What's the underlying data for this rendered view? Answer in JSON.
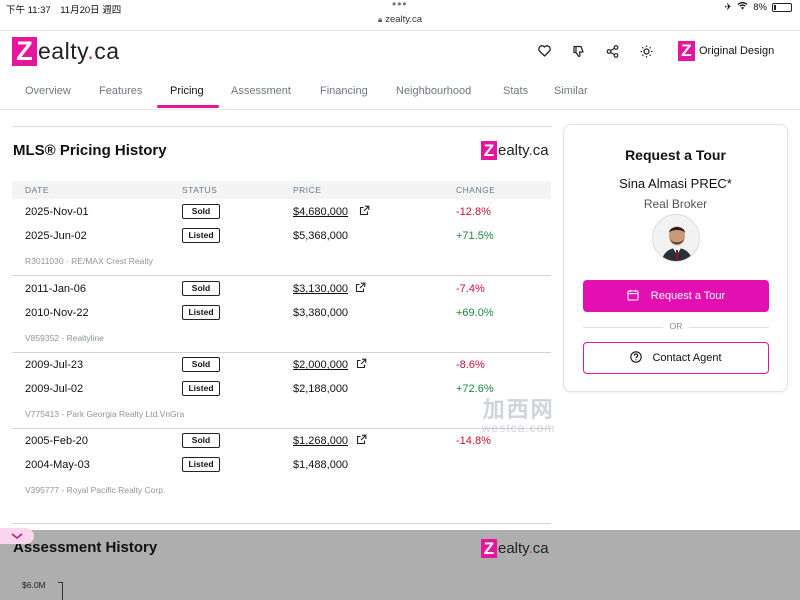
{
  "status_bar": {
    "time": "下午 11:37　11月20日 週四",
    "battery": "8%",
    "url": "zealty.ca"
  },
  "header": {
    "logo_z": "Z",
    "logo_rest": "ealty",
    "logo_dot": ".",
    "logo_tld": "ca",
    "icons": [
      "heart-icon",
      "thumbs-down-icon",
      "share-icon",
      "brightness-icon"
    ],
    "original_design_label": "Original Design"
  },
  "tabs": [
    {
      "label": "Overview"
    },
    {
      "label": "Features"
    },
    {
      "label": "Pricing",
      "active": true
    },
    {
      "label": "Assessment"
    },
    {
      "label": "Financing"
    },
    {
      "label": "Neighbourhood"
    },
    {
      "label": "Stats"
    },
    {
      "label": "Similar"
    }
  ],
  "pricing": {
    "title": "MLS® Pricing History",
    "columns": [
      "DATE",
      "STATUS",
      "PRICE",
      "CHANGE"
    ],
    "groups": [
      {
        "rows": [
          {
            "date": "2025-Nov-01",
            "status": "Sold",
            "price": "$4,680,000",
            "link": true,
            "change": "-12.8%",
            "dir": "neg"
          },
          {
            "date": "2025-Jun-02",
            "status": "Listed",
            "price": "$5,368,000",
            "link": false,
            "change": "+71.5%",
            "dir": "pos"
          }
        ],
        "mls": "R3011030 - RE/MAX Crest Realty"
      },
      {
        "rows": [
          {
            "date": "2011-Jan-06",
            "status": "Sold",
            "price": "$3,130,000",
            "link": true,
            "change": "-7.4%",
            "dir": "neg"
          },
          {
            "date": "2010-Nov-22",
            "status": "Listed",
            "price": "$3,380,000",
            "link": false,
            "change": "+69.0%",
            "dir": "pos"
          }
        ],
        "mls": "V859352 - Realtyline"
      },
      {
        "rows": [
          {
            "date": "2009-Jul-23",
            "status": "Sold",
            "price": "$2,000,000",
            "link": true,
            "change": "-8.6%",
            "dir": "neg"
          },
          {
            "date": "2009-Jul-02",
            "status": "Listed",
            "price": "$2,188,000",
            "link": false,
            "change": "+72.6%",
            "dir": "pos"
          }
        ],
        "mls": "V775413 - Park Georgia Realty Ltd.VnGra"
      },
      {
        "rows": [
          {
            "date": "2005-Feb-20",
            "status": "Sold",
            "price": "$1,268,000",
            "link": true,
            "change": "-14.8%",
            "dir": "neg"
          },
          {
            "date": "2004-May-03",
            "status": "Listed",
            "price": "$1,488,000",
            "link": false,
            "change": "",
            "dir": ""
          }
        ],
        "mls": "V395777 - Royal Pacific Realty Corp."
      }
    ]
  },
  "tour_card": {
    "title": "Request a Tour",
    "agent_name": "Sina Almasi PREC*",
    "agent_role": "Real Broker",
    "request_button": "Request a Tour",
    "or_text": "OR",
    "contact_button": "Contact Agent"
  },
  "watermark": {
    "line1": "加西网",
    "line2": "westca.com"
  },
  "assessment": {
    "title": "Assessment History",
    "y_tick": "$6.0M"
  },
  "colors": {
    "brand": "#e3169d",
    "negative": "#c8102e",
    "positive": "#1a8a3a"
  }
}
